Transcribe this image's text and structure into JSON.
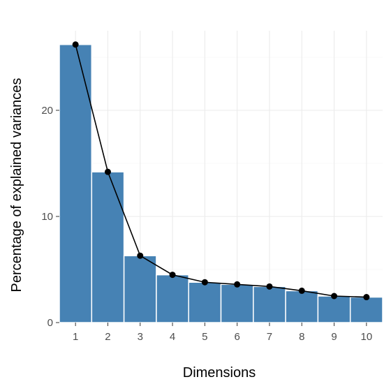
{
  "chart_data": {
    "type": "bar",
    "title": "",
    "xlabel": "Dimensions",
    "ylabel": "Percentage of explained variances",
    "categories": [
      "1",
      "2",
      "3",
      "4",
      "5",
      "6",
      "7",
      "8",
      "9",
      "10"
    ],
    "values": [
      26.2,
      14.2,
      6.3,
      4.5,
      3.8,
      3.6,
      3.4,
      3.0,
      2.5,
      2.4
    ],
    "line_overlay": true,
    "ylim": [
      0,
      27.5
    ],
    "yticks": [
      0,
      10,
      20
    ],
    "ytick_labels": [
      "0",
      "10",
      "20"
    ],
    "grid": true,
    "colors": {
      "bar": "#4682B4",
      "line": "#000000"
    }
  }
}
